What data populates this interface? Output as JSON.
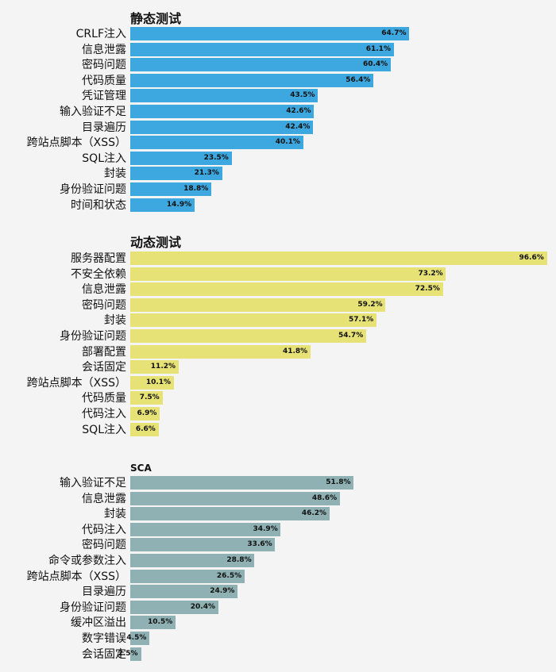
{
  "chart_data": [
    {
      "type": "bar",
      "orientation": "horizontal",
      "title": "静态测试",
      "color": "#3da7df",
      "categories": [
        "CRLF注入",
        "信息泄露",
        "密码问题",
        "代码质量",
        "凭证管理",
        "输入验证不足",
        "目录遍历",
        "跨站点脚本（XSS）",
        "SQL注入",
        "封装",
        "身份验证问题",
        "时间和状态"
      ],
      "values": [
        64.7,
        61.1,
        60.4,
        56.4,
        43.5,
        42.6,
        42.4,
        40.1,
        23.5,
        21.3,
        18.8,
        14.9
      ],
      "value_labels": [
        "64.7%",
        "61.1%",
        "60.4%",
        "56.4%",
        "43.5%",
        "42.6%",
        "42.4%",
        "40.1%",
        "23.5%",
        "21.3%",
        "18.8%",
        "14.9%"
      ],
      "xlim": [
        0,
        100
      ]
    },
    {
      "type": "bar",
      "orientation": "horizontal",
      "title": "动态测试",
      "color": "#e6e276",
      "categories": [
        "服务器配置",
        "不安全依赖",
        "信息泄露",
        "密码问题",
        "封装",
        "身份验证问题",
        "部署配置",
        "会话固定",
        "跨站点脚本（XSS）",
        "代码质量",
        "代码注入",
        "SQL注入"
      ],
      "values": [
        96.6,
        73.2,
        72.5,
        59.2,
        57.1,
        54.7,
        41.8,
        11.2,
        10.1,
        7.5,
        6.9,
        6.6
      ],
      "value_labels": [
        "96.6%",
        "73.2%",
        "72.5%",
        "59.2%",
        "57.1%",
        "54.7%",
        "41.8%",
        "11.2%",
        "10.1%",
        "7.5%",
        "6.9%",
        "6.6%"
      ],
      "xlim": [
        0,
        100
      ]
    },
    {
      "type": "bar",
      "orientation": "horizontal",
      "title": "SCA",
      "color": "#8fb1b3",
      "categories": [
        "输入验证不足",
        "信息泄露",
        "封装",
        "代码注入",
        "密码问题",
        "命令或参数注入",
        "跨站点脚本（XSS）",
        "目录遍历",
        "身份验证问题",
        "缓冲区溢出",
        "数字错误",
        "会话固定"
      ],
      "values": [
        51.8,
        48.6,
        46.2,
        34.9,
        33.6,
        28.8,
        26.5,
        24.9,
        20.4,
        10.5,
        4.5,
        2.5
      ],
      "value_labels": [
        "51.8%",
        "48.6%",
        "46.2%",
        "34.9%",
        "33.6%",
        "28.8%",
        "26.5%",
        "24.9%",
        "20.4%",
        "10.5%",
        "4.5%",
        "2.5%"
      ],
      "xlim": [
        0,
        100
      ]
    }
  ]
}
